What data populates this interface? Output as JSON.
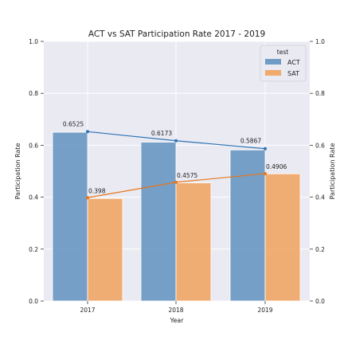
{
  "chart_data": {
    "type": "bar",
    "title": "ACT vs SAT Participation Rate 2017 - 2019",
    "xlabel": "Year",
    "ylabel": "Participation Rate",
    "ylabel_right": "Participation Rate",
    "categories": [
      "2017",
      "2018",
      "2019"
    ],
    "series": [
      {
        "name": "ACT",
        "values": [
          0.6525,
          0.6173,
          0.5867
        ],
        "bar_values": [
          0.65,
          0.612,
          0.582
        ],
        "color": "#6f9bc4"
      },
      {
        "name": "SAT",
        "values": [
          0.398,
          0.4575,
          0.4906
        ],
        "bar_values": [
          0.395,
          0.455,
          0.49
        ],
        "color": "#f0aa6c"
      }
    ],
    "line_colors": {
      "ACT": "#2e74b5",
      "SAT": "#e8751a"
    },
    "data_labels": {
      "ACT": [
        "0.6525",
        "0.6173",
        "0.5867"
      ],
      "SAT": [
        "0.398",
        "0.4575",
        "0.4906"
      ]
    },
    "yticks": [
      0.0,
      0.2,
      0.4,
      0.6,
      0.8,
      1.0
    ],
    "ytick_labels": [
      "0.0",
      "0.2",
      "0.4",
      "0.6",
      "0.8",
      "1.0"
    ],
    "ylim": [
      0,
      1
    ],
    "grid": true,
    "legend": {
      "title": "test",
      "placement": "top-right",
      "entries": [
        "ACT",
        "SAT"
      ]
    },
    "background": "#eaeaf2"
  }
}
